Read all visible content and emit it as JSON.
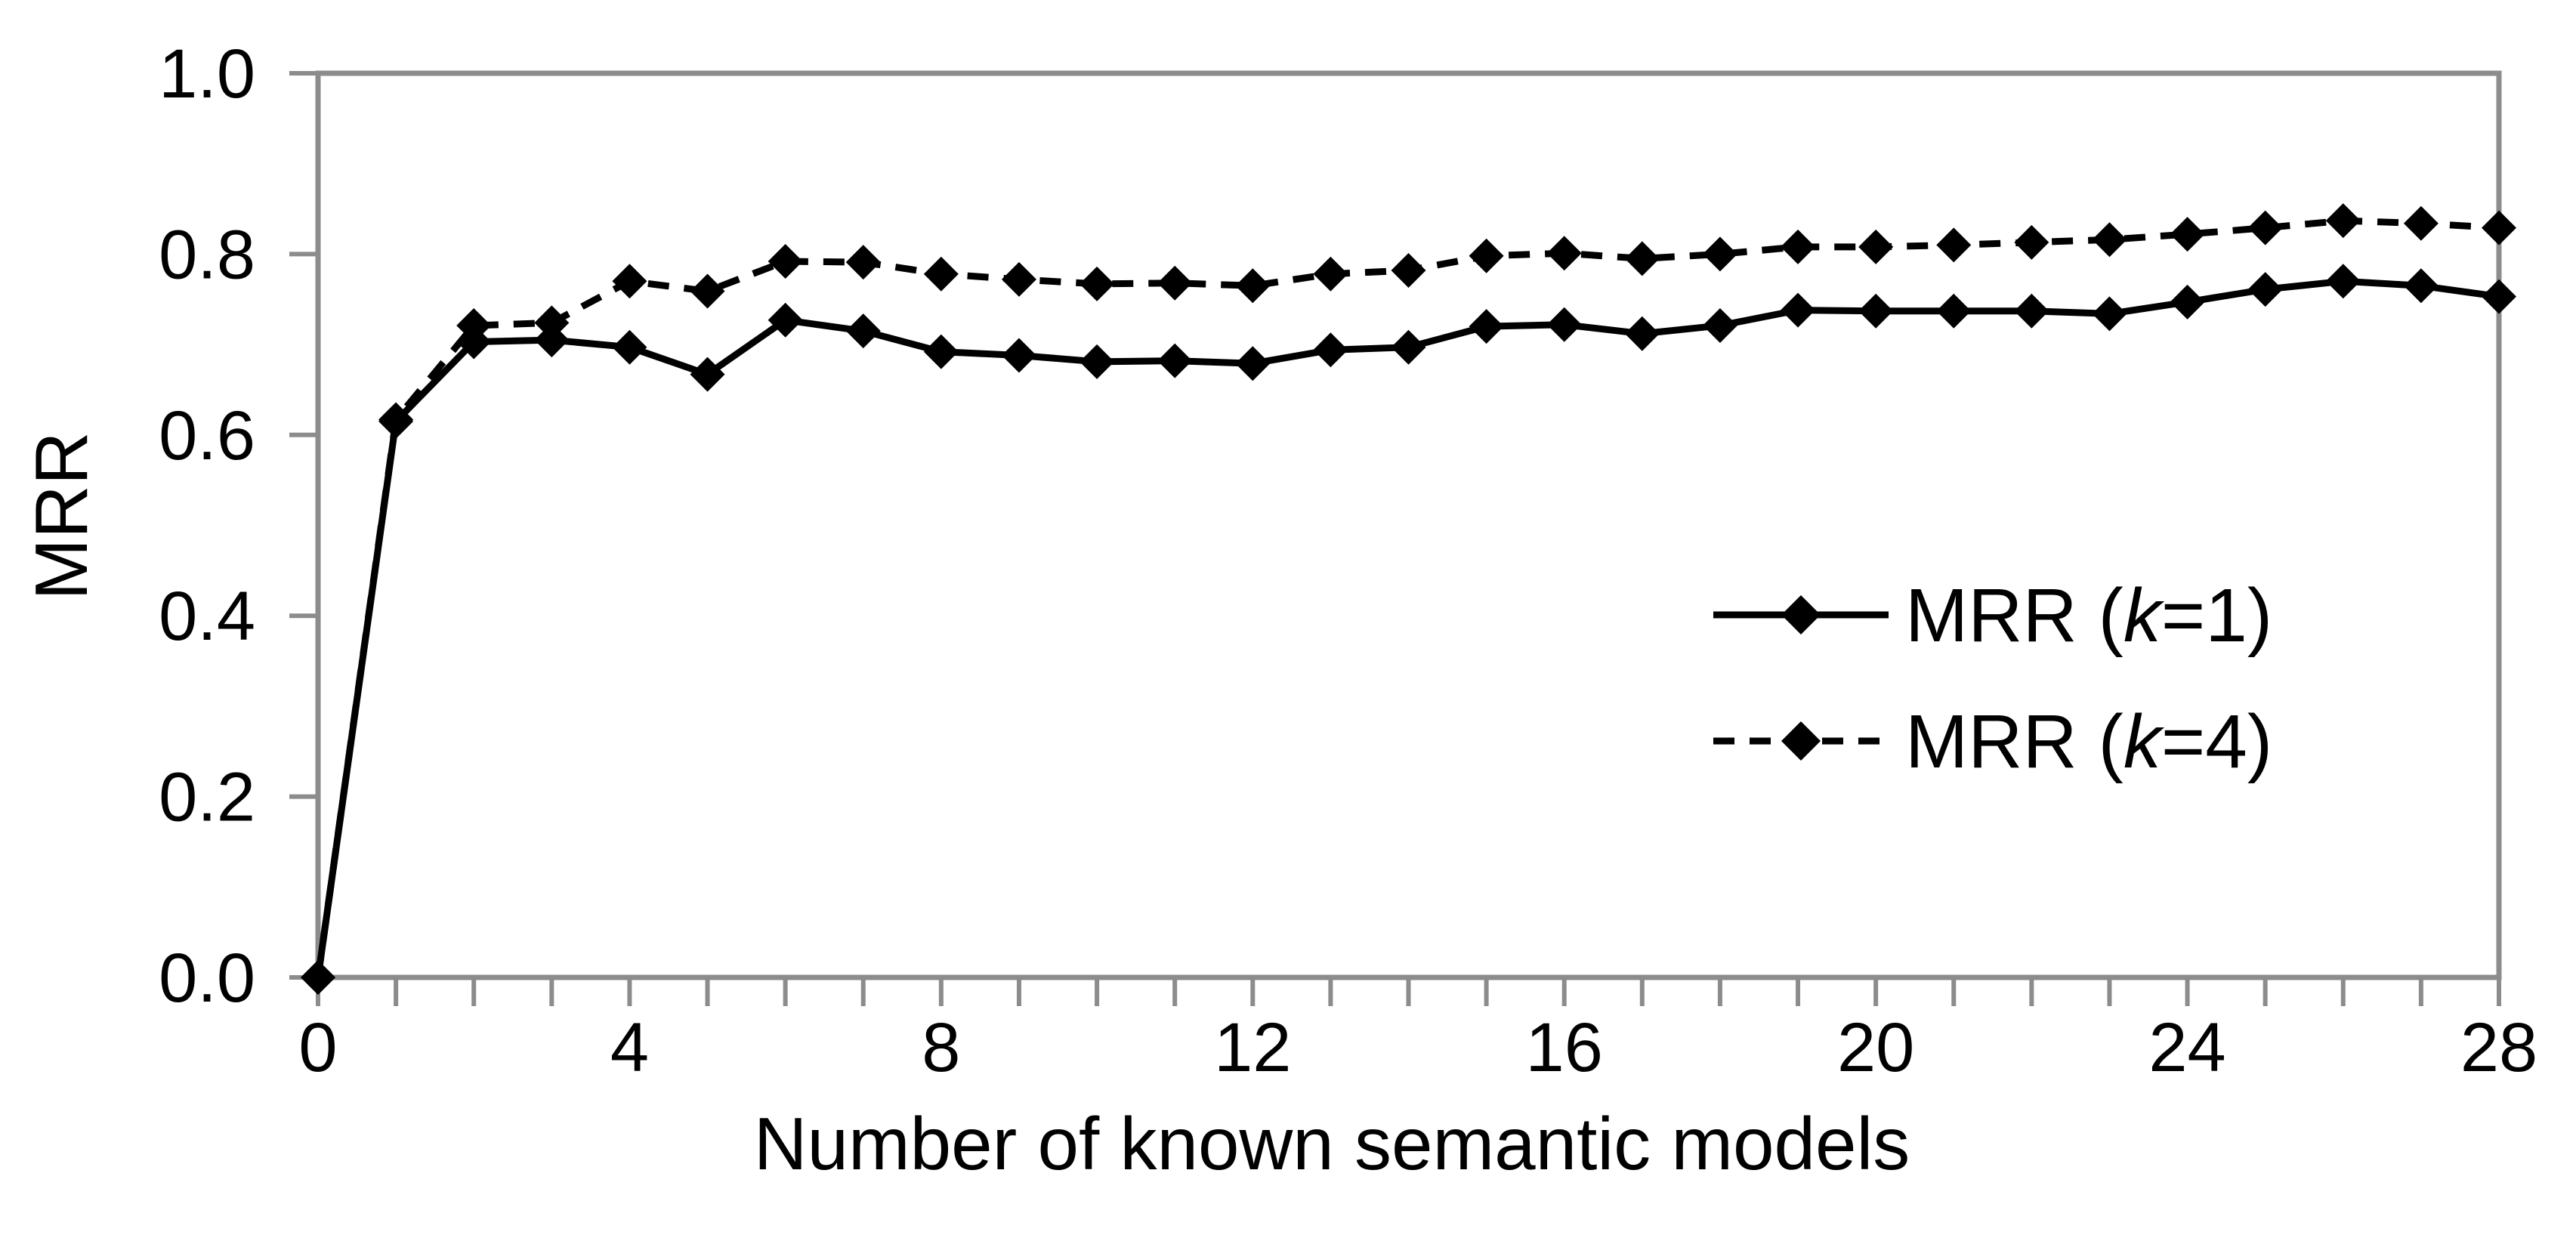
{
  "figure": {
    "background": "#ffffff",
    "description": "Line chart of MRR versus number of known semantic models for k=1 and k=4"
  },
  "chart_data": {
    "type": "line",
    "title": "",
    "xlabel": "Number of known semantic models",
    "ylabel": "MRR",
    "xlim": [
      0,
      28
    ],
    "ylim": [
      0.0,
      1.0
    ],
    "grid": false,
    "legend_position": "inside-right-middle",
    "axis_color": "#8c8c8c",
    "text_color": "#000000",
    "x_tick_interval": 1,
    "x_label_interval": 4,
    "x_tick_labels": [
      "0",
      "4",
      "8",
      "12",
      "16",
      "20",
      "24",
      "28"
    ],
    "y_ticks": [
      0.0,
      0.2,
      0.4,
      0.6,
      0.8,
      1.0
    ],
    "y_tick_labels": [
      "0.0",
      "0.2",
      "0.4",
      "0.6",
      "0.8",
      "1.0"
    ],
    "x": [
      0,
      1,
      2,
      3,
      4,
      5,
      6,
      7,
      8,
      9,
      10,
      11,
      12,
      13,
      14,
      15,
      16,
      17,
      18,
      19,
      20,
      21,
      22,
      23,
      24,
      25,
      26,
      27,
      28
    ],
    "series": [
      {
        "name": "MRR (k=1)",
        "line_style": "solid",
        "marker": "diamond",
        "color": "#000000",
        "values": [
          0.0,
          0.615,
          0.703,
          0.705,
          0.697,
          0.667,
          0.727,
          0.715,
          0.692,
          0.688,
          0.681,
          0.682,
          0.679,
          0.694,
          0.697,
          0.72,
          0.722,
          0.712,
          0.721,
          0.738,
          0.737,
          0.737,
          0.737,
          0.734,
          0.747,
          0.761,
          0.77,
          0.765,
          0.753
        ]
      },
      {
        "name": "MRR (k=4)",
        "line_style": "dashed",
        "marker": "diamond",
        "color": "#000000",
        "values": [
          0.0,
          0.617,
          0.721,
          0.724,
          0.77,
          0.759,
          0.792,
          0.791,
          0.778,
          0.772,
          0.767,
          0.768,
          0.765,
          0.778,
          0.782,
          0.798,
          0.801,
          0.795,
          0.8,
          0.808,
          0.808,
          0.81,
          0.813,
          0.816,
          0.822,
          0.829,
          0.837,
          0.834,
          0.829
        ]
      }
    ]
  }
}
